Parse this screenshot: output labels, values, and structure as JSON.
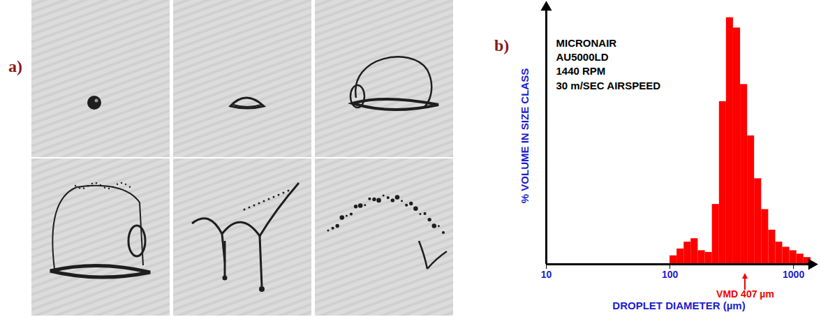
{
  "panel_labels": [
    "a)",
    "b)"
  ],
  "chart_data": {
    "type": "histogram",
    "annotations": [
      "MICRONAIR",
      "AU5000LD",
      "1440 RPM",
      "30 m/SEC AIRSPEED"
    ],
    "x_label": "DROPLET DIAMETER (µm)",
    "y_label": "% VOLUME IN SIZE CLASS",
    "bins": [
      100,
      114,
      130,
      148,
      169,
      193,
      220,
      251,
      286,
      326,
      372,
      424,
      483,
      551,
      628,
      716,
      816,
      931,
      1061,
      1210,
      1380
    ],
    "values": [
      0.5,
      0.9,
      1.3,
      1.5,
      0.8,
      0.7,
      3.5,
      9.5,
      14.4,
      13.8,
      10.5,
      7.5,
      5.0,
      3.2,
      2.0,
      1.3,
      1.0,
      0.8,
      0.6,
      0.4
    ],
    "color": "#ff0000",
    "vmd": {
      "value": 407,
      "label": "VMD 407 µm"
    },
    "xlim": [
      10,
      1400
    ],
    "xticks": [
      10,
      100,
      1000
    ],
    "ylim": [
      0,
      15
    ],
    "yticks": [],
    "log": "x",
    "grid": false,
    "tick_labels": "x"
  }
}
